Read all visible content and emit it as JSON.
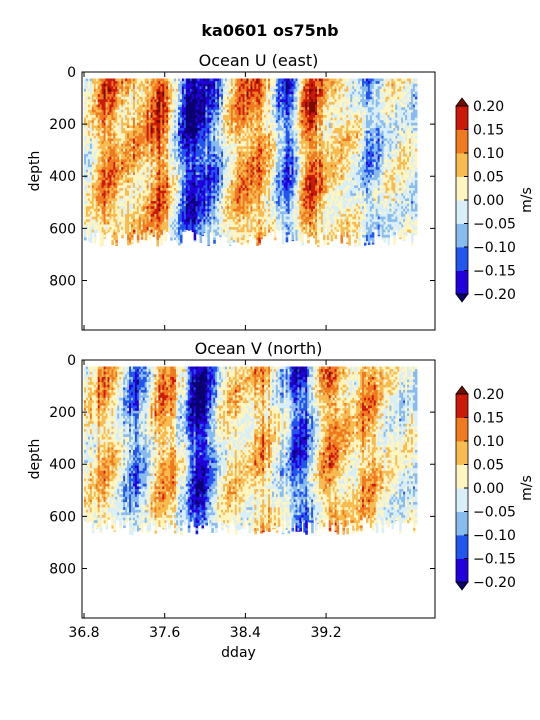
{
  "figure": {
    "suptitle": "ka0601 os75nb"
  },
  "chart_data": [
    {
      "type": "heatmap",
      "title": "Ocean U (east)",
      "xlabel": "",
      "ylabel": "depth",
      "xlim": [
        36.78,
        40.28
      ],
      "ylim": [
        990,
        0
      ],
      "xticks": [
        36.8,
        37.6,
        38.4,
        39.2
      ],
      "xtick_labels": [],
      "yticks": [
        0,
        200,
        400,
        600,
        800
      ],
      "ytick_labels": [
        "0",
        "200",
        "400",
        "600",
        "800"
      ],
      "data_x_range": [
        36.8,
        40.1
      ],
      "data_depth_top": 25,
      "data_depth_bottom_approx": 640,
      "colorbar": {
        "label": "m/s",
        "levels": [
          -0.2,
          -0.15,
          -0.1,
          -0.05,
          0.0,
          0.05,
          0.1,
          0.15,
          0.2
        ],
        "tick_labels": [
          "−0.20",
          "−0.15",
          "−0.10",
          "−0.05",
          "0.00",
          "0.05",
          "0.10",
          "0.15",
          "0.20"
        ],
        "colors": [
          "#2200dd",
          "#2255ee",
          "#88bbee",
          "#d8eef8",
          "#fff5c0",
          "#f8bb50",
          "#f07a20",
          "#cc1a0a"
        ],
        "under_color": "#0a0070",
        "over_color": "#7a0a00",
        "extend": "both"
      },
      "features": [
        {
          "x": 37.05,
          "v": 0.14
        },
        {
          "x": 37.3,
          "v": 0.08
        },
        {
          "x": 37.55,
          "v": 0.16
        },
        {
          "x": 37.85,
          "v": -0.22
        },
        {
          "x": 38.05,
          "v": -0.12
        },
        {
          "x": 38.35,
          "v": 0.1
        },
        {
          "x": 38.55,
          "v": 0.12
        },
        {
          "x": 38.8,
          "v": -0.14
        },
        {
          "x": 39.05,
          "v": 0.17
        },
        {
          "x": 39.35,
          "v": 0.08
        },
        {
          "x": 39.65,
          "v": -0.08
        }
      ]
    },
    {
      "type": "heatmap",
      "title": "Ocean V (north)",
      "xlabel": "dday",
      "ylabel": "depth",
      "xlim": [
        36.78,
        40.28
      ],
      "ylim": [
        990,
        0
      ],
      "xticks": [
        36.8,
        37.6,
        38.4,
        39.2
      ],
      "xtick_labels": [
        "36.8",
        "37.6",
        "38.4",
        "39.2"
      ],
      "yticks": [
        0,
        200,
        400,
        600,
        800
      ],
      "ytick_labels": [
        "0",
        "200",
        "400",
        "600",
        "800"
      ],
      "data_x_range": [
        36.8,
        40.1
      ],
      "data_depth_top": 25,
      "data_depth_bottom_approx": 640,
      "colorbar": {
        "label": "m/s",
        "levels": [
          -0.2,
          -0.15,
          -0.1,
          -0.05,
          0.0,
          0.05,
          0.1,
          0.15,
          0.2
        ],
        "tick_labels": [
          "−0.20",
          "−0.15",
          "−0.10",
          "−0.05",
          "0.00",
          "0.05",
          "0.10",
          "0.15",
          "0.20"
        ],
        "colors": [
          "#2200dd",
          "#2255ee",
          "#88bbee",
          "#d8eef8",
          "#fff5c0",
          "#f8bb50",
          "#f07a20",
          "#cc1a0a"
        ],
        "under_color": "#0a0070",
        "over_color": "#7a0a00",
        "extend": "both"
      },
      "features": [
        {
          "x": 37.0,
          "v": 0.1
        },
        {
          "x": 37.3,
          "v": -0.12
        },
        {
          "x": 37.6,
          "v": 0.12
        },
        {
          "x": 37.95,
          "v": -0.24
        },
        {
          "x": 38.3,
          "v": 0.06
        },
        {
          "x": 38.55,
          "v": 0.1
        },
        {
          "x": 38.95,
          "v": -0.18
        },
        {
          "x": 39.25,
          "v": 0.16
        },
        {
          "x": 39.6,
          "v": 0.12
        }
      ]
    }
  ]
}
